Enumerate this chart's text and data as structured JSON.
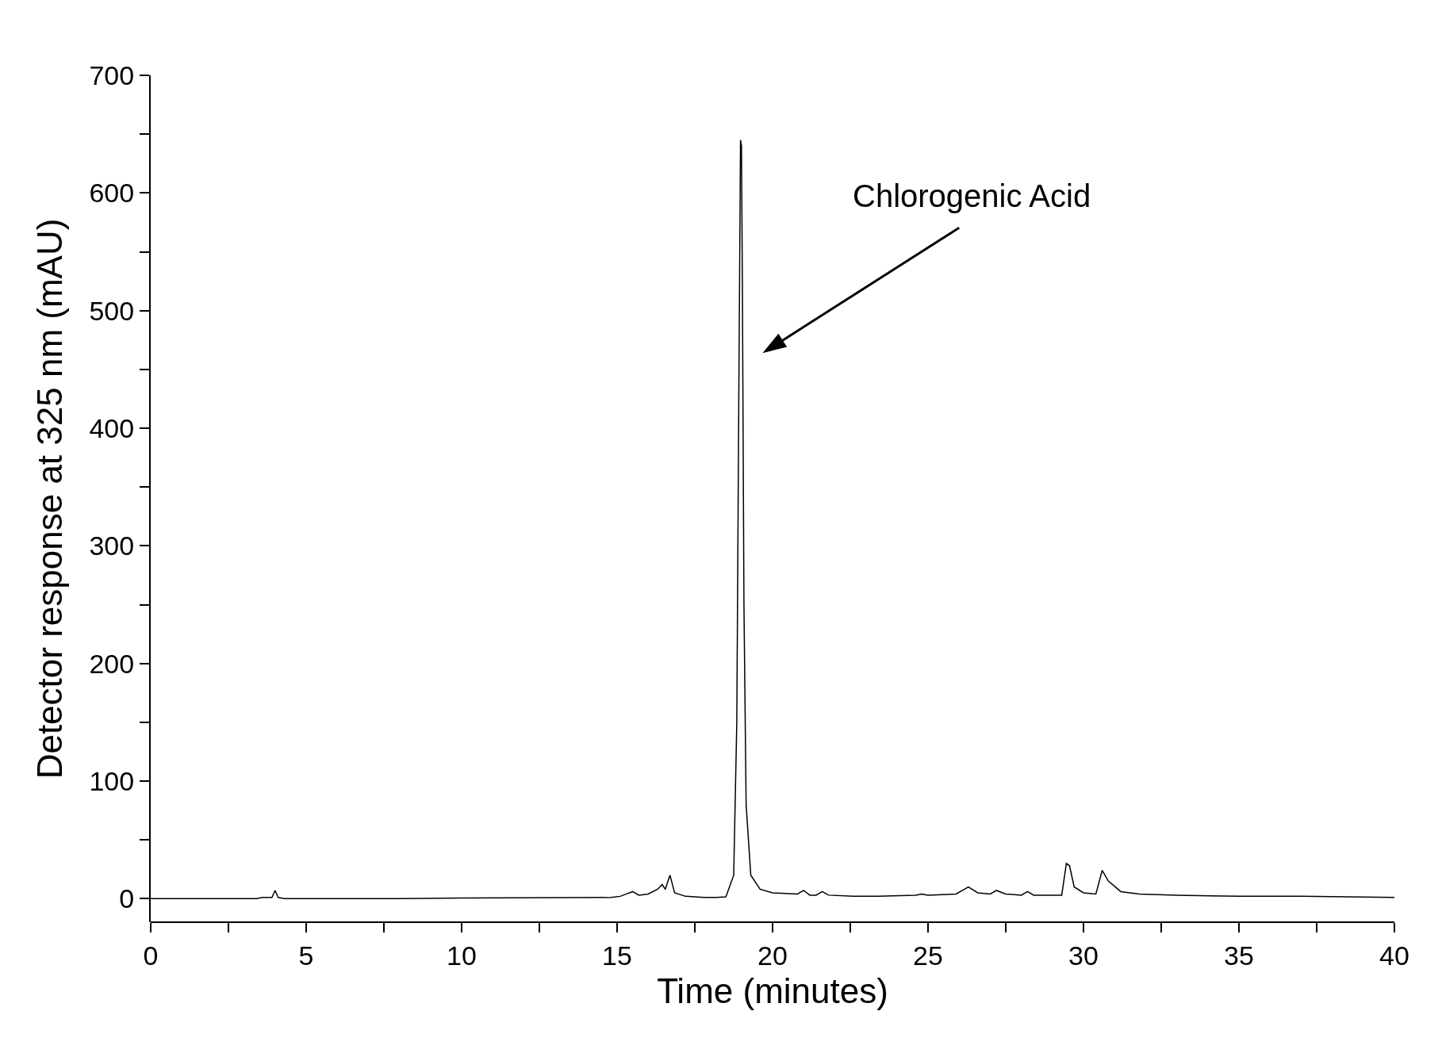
{
  "chart_data": {
    "type": "line",
    "xlabel": "Time (minutes)",
    "ylabel": "Detector response at 325 nm (mAU)",
    "x": [
      0,
      3.4,
      3.6,
      3.9,
      4.0,
      4.1,
      4.3,
      7.5,
      10,
      14.8,
      15.1,
      15.3,
      15.5,
      15.7,
      16.0,
      16.3,
      16.45,
      16.55,
      16.7,
      16.85,
      17.2,
      17.8,
      18.2,
      18.5,
      18.75,
      18.85,
      18.92,
      18.97,
      19.0,
      19.03,
      19.08,
      19.15,
      19.3,
      19.6,
      20.0,
      20.8,
      21.0,
      21.2,
      21.4,
      21.6,
      21.8,
      22.6,
      23.4,
      24.6,
      24.8,
      25.0,
      25.9,
      26.3,
      26.6,
      27.0,
      27.2,
      27.5,
      28.0,
      28.2,
      28.4,
      29.3,
      29.45,
      29.55,
      29.7,
      30.0,
      30.4,
      30.6,
      30.8,
      31.2,
      31.8,
      33,
      35,
      37,
      38.5,
      40
    ],
    "series": [
      {
        "color": "#000000",
        "values": [
          0,
          0,
          1,
          1,
          7,
          1,
          0,
          0,
          0.5,
          1,
          2,
          4,
          6,
          3,
          4,
          8,
          12,
          8,
          20,
          5,
          2,
          1,
          1,
          1.5,
          20,
          150,
          450,
          645,
          640,
          520,
          250,
          80,
          20,
          8,
          5,
          4,
          7,
          3,
          3,
          6,
          3,
          2,
          2,
          3,
          4,
          3,
          4,
          10,
          5,
          4,
          7,
          4,
          3,
          6,
          3,
          3,
          30,
          28,
          10,
          5,
          4,
          24,
          15,
          6,
          4,
          3,
          2,
          2,
          1.5,
          1
        ]
      }
    ],
    "xlim": [
      0,
      40
    ],
    "ylim": [
      -20,
      700
    ],
    "xticks": [
      0,
      {
        "value": 2.5,
        "label": null
      },
      5,
      {
        "value": 7.5,
        "label": null
      },
      10,
      {
        "value": 12.5,
        "label": null
      },
      15,
      {
        "value": 17.5,
        "label": null
      },
      20,
      {
        "value": 22.5,
        "label": null
      },
      25,
      {
        "value": 27.5,
        "label": null
      },
      30,
      {
        "value": 32.5,
        "label": null
      },
      35,
      {
        "value": 37.5,
        "label": null
      },
      40
    ],
    "yticks": [
      0,
      {
        "value": 50,
        "label": null
      },
      100,
      {
        "value": 150,
        "label": null
      },
      200,
      {
        "value": 250,
        "label": null
      },
      300,
      {
        "value": 350,
        "label": null
      },
      400,
      {
        "value": 450,
        "label": null
      },
      500,
      {
        "value": 550,
        "label": null
      },
      600,
      {
        "value": 650,
        "label": null
      },
      700
    ],
    "annotations": [
      "Chlorogenic Acid"
    ],
    "grid": false,
    "marker": "none",
    "line_style": "solid"
  }
}
